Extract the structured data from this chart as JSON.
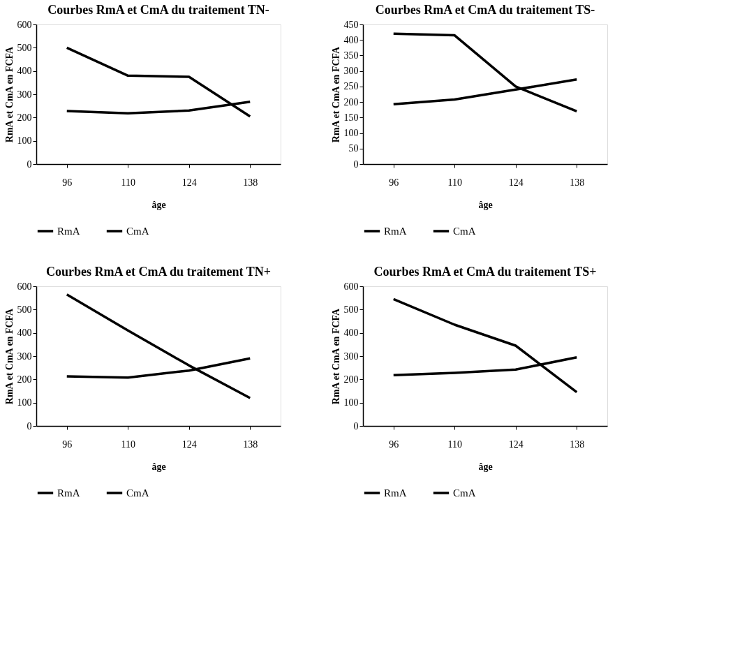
{
  "chart_data": [
    {
      "type": "line",
      "title": "Courbes RmA et CmA du traitement TN-",
      "xlabel": "âge",
      "ylabel": "RmA et CmA en FCFA",
      "categories": [
        "96",
        "110",
        "124",
        "138"
      ],
      "ylim": [
        0,
        600
      ],
      "yticks": [
        0,
        100,
        200,
        300,
        400,
        500,
        600
      ],
      "grid": false,
      "legend": "bottom",
      "marker": "none",
      "line_style": "solid",
      "series": [
        {
          "name": "RmA",
          "color": "#000000",
          "values": [
            500,
            380,
            375,
            205
          ]
        },
        {
          "name": "CmA",
          "color": "#000000",
          "values": [
            228,
            218,
            230,
            268
          ]
        }
      ]
    },
    {
      "type": "line",
      "title": "Courbes RmA et CmA du traitement TS-",
      "xlabel": "âge",
      "ylabel": "RmA et CmA en FCFA",
      "categories": [
        "96",
        "110",
        "124",
        "138"
      ],
      "ylim": [
        0,
        450
      ],
      "yticks": [
        0,
        50,
        100,
        150,
        200,
        250,
        300,
        350,
        400,
        450
      ],
      "grid": false,
      "legend": "bottom",
      "marker": "none",
      "line_style": "solid",
      "series": [
        {
          "name": "RmA",
          "color": "#000000",
          "values": [
            420,
            415,
            250,
            170
          ]
        },
        {
          "name": "CmA",
          "color": "#000000",
          "values": [
            193,
            208,
            240,
            273
          ]
        }
      ]
    },
    {
      "type": "line",
      "title": "Courbes RmA et CmA du traitement TN+",
      "xlabel": "âge",
      "ylabel": "RmA et CmA en FCFA",
      "categories": [
        "96",
        "110",
        "124",
        "138"
      ],
      "ylim": [
        0,
        600
      ],
      "yticks": [
        0,
        100,
        200,
        300,
        400,
        500,
        600
      ],
      "grid": false,
      "legend": "bottom",
      "marker": "none",
      "line_style": "solid",
      "series": [
        {
          "name": "RmA",
          "color": "#000000",
          "values": [
            565,
            410,
            260,
            120
          ]
        },
        {
          "name": "CmA",
          "color": "#000000",
          "values": [
            213,
            208,
            238,
            290
          ]
        }
      ]
    },
    {
      "type": "line",
      "title": "Courbes RmA et CmA du traitement TS+",
      "xlabel": "âge",
      "ylabel": "RmA et CmA en FCFA",
      "categories": [
        "96",
        "110",
        "124",
        "138"
      ],
      "ylim": [
        0,
        600
      ],
      "yticks": [
        0,
        100,
        200,
        300,
        400,
        500,
        600
      ],
      "grid": false,
      "legend": "bottom",
      "marker": "none",
      "line_style": "solid",
      "series": [
        {
          "name": "RmA",
          "color": "#000000",
          "values": [
            545,
            435,
            345,
            145
          ]
        },
        {
          "name": "CmA",
          "color": "#000000",
          "values": [
            218,
            228,
            242,
            295
          ]
        }
      ]
    }
  ]
}
